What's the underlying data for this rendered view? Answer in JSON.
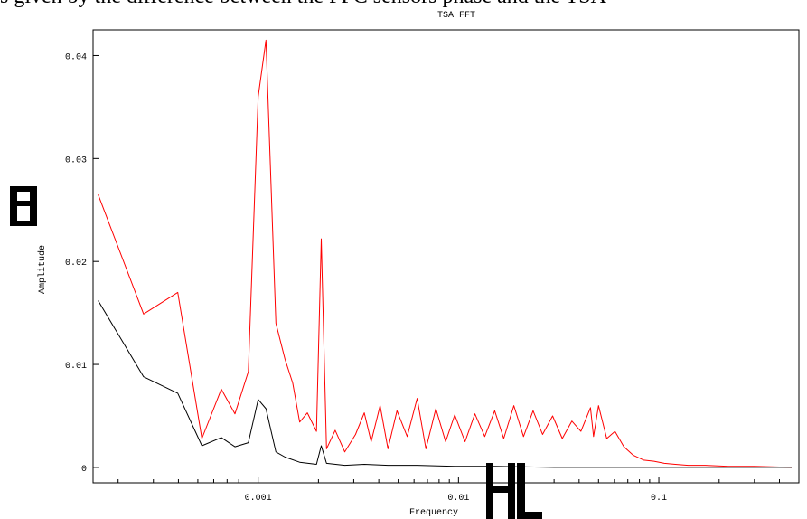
{
  "page_header_text": "s given by the difference between the PFC sensors phase and the TSA",
  "chart_data": {
    "type": "line",
    "title": "TSA FFT",
    "xlabel": "Frequency",
    "ylabel": "Amplitude",
    "x_scale": "log",
    "xlim": [
      0.00015,
      0.5
    ],
    "ylim": [
      -0.0015,
      0.0425
    ],
    "y_ticks": [
      {
        "value": 0,
        "label": "0"
      },
      {
        "value": 0.01,
        "label": "0.01"
      },
      {
        "value": 0.02,
        "label": "0.02"
      },
      {
        "value": 0.03,
        "label": "0.03"
      },
      {
        "value": 0.04,
        "label": "0.04"
      }
    ],
    "x_ticks": [
      {
        "value": 0.001,
        "label": "0.001"
      },
      {
        "value": 0.01,
        "label": "0.01"
      },
      {
        "value": 0.1,
        "label": "0.1"
      }
    ],
    "colors": {
      "series_red": "#ff0000",
      "series_black": "#000000",
      "axis": "#000000"
    },
    "series": [
      {
        "color": "#ff0000",
        "points": [
          [
            0.000159,
            0.0265
          ],
          [
            0.000268,
            0.0149
          ],
          [
            0.000397,
            0.017
          ],
          [
            0.000524,
            0.0028
          ],
          [
            0.000655,
            0.0076
          ],
          [
            0.000766,
            0.0052
          ],
          [
            0.000893,
            0.0093
          ],
          [
            0.001,
            0.036
          ],
          [
            0.001094,
            0.0415
          ],
          [
            0.001226,
            0.014
          ],
          [
            0.001362,
            0.0105
          ],
          [
            0.001488,
            0.0082
          ],
          [
            0.001611,
            0.0044
          ],
          [
            0.001761,
            0.0053
          ],
          [
            0.001954,
            0.0035
          ],
          [
            0.002066,
            0.0222
          ],
          [
            0.002194,
            0.0018
          ],
          [
            0.002423,
            0.0036
          ],
          [
            0.002705,
            0.0015
          ],
          [
            0.003061,
            0.0032
          ],
          [
            0.003388,
            0.0053
          ],
          [
            0.003663,
            0.0025
          ],
          [
            0.00406,
            0.006
          ],
          [
            0.004444,
            0.0018
          ],
          [
            0.004932,
            0.0055
          ],
          [
            0.005544,
            0.003
          ],
          [
            0.00622,
            0.0067
          ],
          [
            0.006877,
            0.0018
          ],
          [
            0.007712,
            0.0057
          ],
          [
            0.00862,
            0.0025
          ],
          [
            0.009576,
            0.0051
          ],
          [
            0.01078,
            0.0025
          ],
          [
            0.01207,
            0.0052
          ],
          [
            0.01352,
            0.003
          ],
          [
            0.01516,
            0.0055
          ],
          [
            0.01682,
            0.0028
          ],
          [
            0.01889,
            0.006
          ],
          [
            0.02111,
            0.003
          ],
          [
            0.02357,
            0.0055
          ],
          [
            0.02628,
            0.0032
          ],
          [
            0.02949,
            0.005
          ],
          [
            0.03297,
            0.0028
          ],
          [
            0.03679,
            0.0045
          ],
          [
            0.04082,
            0.0035
          ],
          [
            0.0456,
            0.0058
          ],
          [
            0.04721,
            0.003
          ],
          [
            0.05,
            0.006
          ],
          [
            0.05494,
            0.0028
          ],
          [
            0.06041,
            0.0035
          ],
          [
            0.06694,
            0.002
          ],
          [
            0.07436,
            0.0012
          ],
          [
            0.08411,
            0.0007
          ],
          [
            0.09459,
            0.0006
          ],
          [
            0.1065,
            0.0004
          ],
          [
            0.1209,
            0.0003
          ],
          [
            0.1401,
            0.0002
          ],
          [
            0.1703,
            0.0002
          ],
          [
            0.2227,
            0.0001
          ],
          [
            0.3,
            0.0001
          ],
          [
            0.46,
            0.0
          ]
        ]
      },
      {
        "color": "#000000",
        "points": [
          [
            0.000159,
            0.0162
          ],
          [
            0.000268,
            0.0088
          ],
          [
            0.000397,
            0.0072
          ],
          [
            0.000524,
            0.0021
          ],
          [
            0.000655,
            0.0029
          ],
          [
            0.000766,
            0.002
          ],
          [
            0.000893,
            0.0024
          ],
          [
            0.001,
            0.0066
          ],
          [
            0.001094,
            0.0057
          ],
          [
            0.001226,
            0.0015
          ],
          [
            0.001362,
            0.001
          ],
          [
            0.001611,
            0.0005
          ],
          [
            0.001954,
            0.0003
          ],
          [
            0.002066,
            0.0021
          ],
          [
            0.002194,
            0.0004
          ],
          [
            0.002705,
            0.0002
          ],
          [
            0.003388,
            0.0003
          ],
          [
            0.004444,
            0.0002
          ],
          [
            0.00622,
            0.0002
          ],
          [
            0.009576,
            0.0001
          ],
          [
            0.01516,
            0.0001
          ],
          [
            0.03,
            0.0
          ],
          [
            0.1,
            0.0
          ],
          [
            0.46,
            0.0
          ]
        ]
      }
    ]
  }
}
